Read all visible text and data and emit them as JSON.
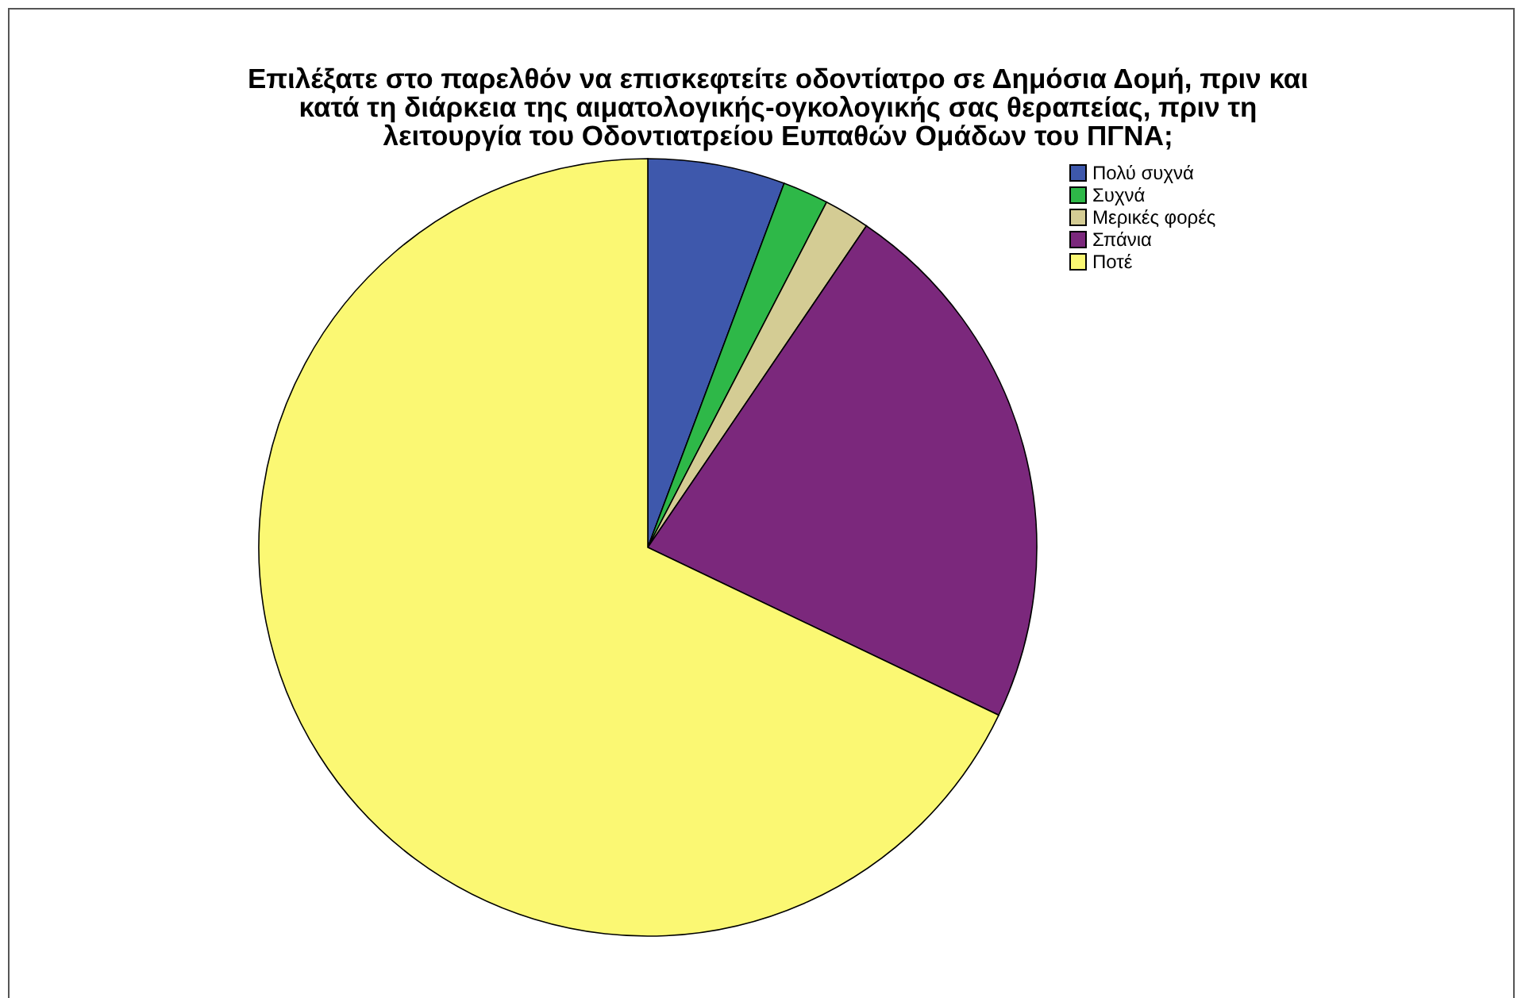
{
  "chart_data": {
    "type": "pie",
    "title": "Επιλέξατε στο παρελθόν να επισκεφτείτε οδοντίατρο σε Δημόσια Δομή, πριν και\nκατά τη διάρκεια της αιματολογικής-ογκολογικής σας θεραπείας, πριν τη\nλειτουργία του Οδοντιατρείου Ευπαθών Ομάδων του ΠΓΝΑ;",
    "categories": [
      "Πολύ συχνά",
      "Συχνά",
      "Μερικές φορές",
      "Σπάνια",
      "Ποτέ"
    ],
    "values": [
      5.7,
      1.9,
      1.9,
      22.6,
      67.9
    ],
    "colors": [
      "#3e58ac",
      "#2eb848",
      "#d4cc94",
      "#7b287c",
      "#fbf873"
    ],
    "legend": "top right"
  }
}
